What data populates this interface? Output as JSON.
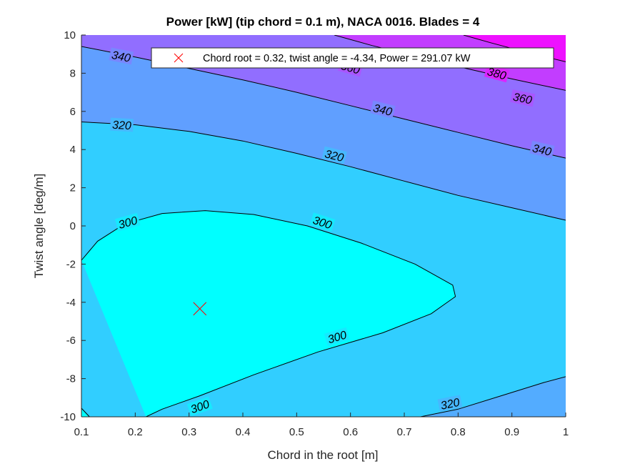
{
  "chart_data": {
    "type": "contour",
    "title": "Power [kW] (tip chord = 0.1 m), NACA 0016. Blades = 4",
    "xlabel": "Chord in the root [m]",
    "ylabel": "Twist angle [deg/m]",
    "xlim": [
      0.1,
      1.0
    ],
    "ylim": [
      -10,
      10
    ],
    "xticks": [
      0.1,
      0.2,
      0.3,
      0.4,
      0.5,
      0.6,
      0.7,
      0.8,
      0.9,
      1.0
    ],
    "xtick_labels": [
      "0.1",
      "0.2",
      "0.3",
      "0.4",
      "0.5",
      "0.6",
      "0.7",
      "0.8",
      "0.9",
      "1"
    ],
    "yticks": [
      -10,
      -8,
      -6,
      -4,
      -2,
      0,
      2,
      4,
      6,
      8,
      10
    ],
    "ytick_labels": [
      "-10",
      "-8",
      "-6",
      "-4",
      "-2",
      "0",
      "2",
      "4",
      "6",
      "8",
      "10"
    ],
    "colormap": {
      "low_color": "#00ffff",
      "high_color": "#ff00ff",
      "range": [
        291,
        395
      ]
    },
    "contour_lines": [
      {
        "level": 300,
        "segments": [
          [
            [
              0.1,
              -1.8
            ],
            [
              0.13,
              -0.8
            ],
            [
              0.18,
              0.1
            ],
            [
              0.25,
              0.65
            ],
            [
              0.33,
              0.8
            ],
            [
              0.42,
              0.6
            ],
            [
              0.52,
              0.0
            ],
            [
              0.62,
              -0.9
            ],
            [
              0.72,
              -2.0
            ],
            [
              0.79,
              -3.1
            ],
            [
              0.795,
              -3.7
            ],
            [
              0.75,
              -4.6
            ],
            [
              0.66,
              -5.6
            ],
            [
              0.54,
              -6.6
            ],
            [
              0.42,
              -7.8
            ],
            [
              0.32,
              -8.9
            ],
            [
              0.25,
              -9.6
            ],
            [
              0.22,
              -10.0
            ]
          ],
          [
            [
              0.1,
              -9.55
            ],
            [
              0.115,
              -10.0
            ]
          ]
        ],
        "labels": [
          {
            "text": "300",
            "at": [
              0.186,
              0.2
            ]
          },
          {
            "text": "300",
            "at": [
              0.548,
              0.2
            ]
          },
          {
            "text": "300",
            "at": [
              0.575,
              -5.8
            ]
          },
          {
            "text": "300",
            "at": [
              0.32,
              -9.45
            ]
          }
        ]
      },
      {
        "level": 320,
        "segments": [
          [
            [
              0.1,
              5.45
            ],
            [
              0.2,
              5.3
            ],
            [
              0.3,
              4.95
            ],
            [
              0.4,
              4.45
            ],
            [
              0.5,
              3.8
            ],
            [
              0.6,
              3.1
            ],
            [
              0.7,
              2.35
            ],
            [
              0.8,
              1.6
            ],
            [
              0.9,
              0.95
            ],
            [
              1.0,
              0.3
            ]
          ],
          [
            [
              0.73,
              -10.0
            ],
            [
              0.8,
              -9.6
            ],
            [
              0.88,
              -8.9
            ],
            [
              0.96,
              -8.2
            ],
            [
              1.0,
              -7.9
            ]
          ]
        ],
        "labels": [
          {
            "text": "320",
            "at": [
              0.175,
              5.3
            ]
          },
          {
            "text": "320",
            "at": [
              0.57,
              3.7
            ]
          },
          {
            "text": "320",
            "at": [
              0.785,
              -9.3
            ]
          }
        ]
      },
      {
        "level": 340,
        "segments": [
          [
            [
              0.1,
              9.4
            ],
            [
              0.2,
              8.85
            ],
            [
              0.3,
              8.25
            ],
            [
              0.4,
              7.65
            ],
            [
              0.5,
              7.0
            ],
            [
              0.6,
              6.3
            ],
            [
              0.7,
              5.6
            ],
            [
              0.8,
              4.9
            ],
            [
              0.9,
              4.2
            ],
            [
              1.0,
              3.55
            ]
          ]
        ],
        "labels": [
          {
            "text": "340",
            "at": [
              0.174,
              8.9
            ]
          },
          {
            "text": "340",
            "at": [
              0.66,
              6.1
            ]
          },
          {
            "text": "340",
            "at": [
              0.956,
              4.0
            ]
          }
        ]
      },
      {
        "level": 360,
        "segments": [
          [
            [
              0.57,
              10.0
            ],
            [
              0.64,
              9.45
            ],
            [
              0.72,
              8.9
            ],
            [
              0.8,
              8.35
            ],
            [
              0.9,
              7.7
            ],
            [
              1.0,
              7.1
            ]
          ]
        ],
        "labels": [
          {
            "text": "360",
            "at": [
              0.6,
              8.3
            ]
          },
          {
            "text": "360",
            "at": [
              0.92,
              6.7
            ]
          }
        ]
      },
      {
        "level": 380,
        "segments": [
          [
            [
              0.81,
              10.0
            ],
            [
              0.86,
              9.6
            ],
            [
              0.92,
              9.15
            ],
            [
              1.0,
              8.6
            ]
          ]
        ],
        "labels": [
          {
            "text": "380",
            "at": [
              0.872,
              8.0
            ]
          }
        ]
      }
    ],
    "marker": {
      "x": 0.32,
      "y": -4.34,
      "symbol": "x",
      "color": "#ff0000",
      "label": "Chord root = 0.32, twist angle = -4.34, Power = 291.07 kW"
    },
    "legend": {
      "position": "top-right",
      "entries": [
        "Chord root = 0.32, twist angle = -4.34, Power = 291.07 kW"
      ]
    },
    "grid": false
  }
}
